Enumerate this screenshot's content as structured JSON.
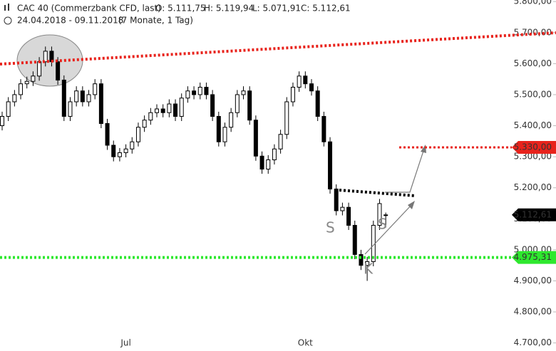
{
  "chart_data": {
    "type": "candlestick",
    "header": {
      "title": "CAC 40 (Commerzbank CFD, last)",
      "open": "O: 5.111,75",
      "high": "H: 5.119,94",
      "low": "L: 5.071,91",
      "close": "C: 5.112,61",
      "range": "24.04.2018 - 09.11.2018",
      "span": "(7 Monate, 1 Tag)"
    },
    "categories": [
      null,
      null,
      null,
      null,
      null,
      null,
      null,
      null,
      null,
      null,
      null,
      null,
      null,
      null,
      null,
      null,
      null,
      null,
      null,
      null,
      "Jul",
      null,
      null,
      null,
      null,
      null,
      null,
      null,
      null,
      null,
      null,
      null,
      null,
      null,
      null,
      null,
      null,
      null,
      null,
      null,
      null,
      null,
      null,
      null,
      null,
      null,
      null,
      null,
      null,
      "Okt",
      null,
      null,
      null,
      null,
      null,
      null,
      null,
      null,
      null,
      null,
      null,
      null,
      null
    ],
    "open": [
      5400,
      5430,
      5477,
      5500,
      5535,
      5543,
      5560,
      5606,
      5640,
      5606,
      5547,
      5430,
      5477,
      5512,
      5477,
      5500,
      5535,
      5407,
      5337,
      5300,
      5313,
      5325,
      5348,
      5395,
      5418,
      5442,
      5454,
      5442,
      5470,
      5430,
      5489,
      5512,
      5500,
      5524,
      5500,
      5430,
      5348,
      5395,
      5442,
      5500,
      5512,
      5418,
      5302,
      5260,
      5290,
      5325,
      5372,
      5477,
      5524,
      5560,
      5535,
      5512,
      5430,
      5348,
      5196,
      5126,
      5137,
      5079,
      4985,
      4950,
      4962,
      5079,
      5111.75
    ],
    "high": [
      5445,
      5492,
      5515,
      5550,
      5558,
      5575,
      5621,
      5655,
      5655,
      5621,
      5562,
      5492,
      5527,
      5527,
      5515,
      5550,
      5550,
      5422,
      5352,
      5328,
      5340,
      5363,
      5410,
      5433,
      5457,
      5469,
      5469,
      5485,
      5485,
      5504,
      5527,
      5527,
      5539,
      5539,
      5515,
      5445,
      5410,
      5457,
      5515,
      5527,
      5527,
      5433,
      5317,
      5305,
      5340,
      5387,
      5492,
      5539,
      5575,
      5575,
      5550,
      5527,
      5445,
      5363,
      5211,
      5152,
      5152,
      5094,
      5000,
      4977,
      5094,
      5164,
      5119.94
    ],
    "low": [
      5385,
      5415,
      5462,
      5485,
      5520,
      5528,
      5545,
      5591,
      5591,
      5532,
      5415,
      5415,
      5462,
      5462,
      5462,
      5485,
      5392,
      5322,
      5285,
      5285,
      5298,
      5310,
      5333,
      5380,
      5403,
      5427,
      5427,
      5427,
      5415,
      5415,
      5474,
      5485,
      5485,
      5485,
      5415,
      5333,
      5333,
      5380,
      5427,
      5485,
      5403,
      5287,
      5245,
      5245,
      5275,
      5310,
      5357,
      5462,
      5509,
      5520,
      5497,
      5415,
      5333,
      5181,
      5111,
      5111,
      5064,
      4970,
      4935,
      4900,
      4947,
      5064,
      5071.91
    ],
    "close": [
      5430,
      5477,
      5500,
      5535,
      5543,
      5560,
      5606,
      5640,
      5606,
      5547,
      5430,
      5477,
      5512,
      5477,
      5500,
      5535,
      5407,
      5337,
      5300,
      5313,
      5325,
      5348,
      5395,
      5418,
      5442,
      5454,
      5442,
      5470,
      5430,
      5489,
      5512,
      5500,
      5524,
      5500,
      5430,
      5348,
      5395,
      5442,
      5500,
      5512,
      5418,
      5302,
      5260,
      5290,
      5325,
      5372,
      5477,
      5524,
      5560,
      5535,
      5512,
      5430,
      5348,
      5196,
      5126,
      5137,
      5079,
      4985,
      4950,
      4962,
      5079,
      5149,
      5112.61
    ],
    "ylim": [
      4674,
      5805
    ],
    "yticks": [
      {
        "value": 5800,
        "label": "5.800,00"
      },
      {
        "value": 5700,
        "label": "5.700,00"
      },
      {
        "value": 5600,
        "label": "5.600,00"
      },
      {
        "value": 5500,
        "label": "5.500,00"
      },
      {
        "value": 5400,
        "label": "5.400,00"
      },
      {
        "value": 5300,
        "label": "5.300,00"
      },
      {
        "value": 5200,
        "label": "5.200,00"
      },
      {
        "value": 5100,
        "label": "5.100,00"
      },
      {
        "value": 5000,
        "label": "5.000,00"
      },
      {
        "value": 4900,
        "label": "4.900,00"
      },
      {
        "value": 4800,
        "label": "4.800,00"
      },
      {
        "value": 4700,
        "label": "4.700,00"
      }
    ],
    "levels": [
      {
        "value": 5330,
        "label": "5.330,00",
        "color": "#e8231c"
      },
      {
        "value": 4975.31,
        "label": "4.975,31",
        "color": "#2ee82e"
      }
    ],
    "last_price": {
      "value": 5112.61,
      "label": "5.112,61",
      "color": "#000000"
    },
    "annotations": [
      "S",
      "K",
      "S"
    ],
    "up_color": "#ffffff",
    "down_color": "#000000"
  }
}
